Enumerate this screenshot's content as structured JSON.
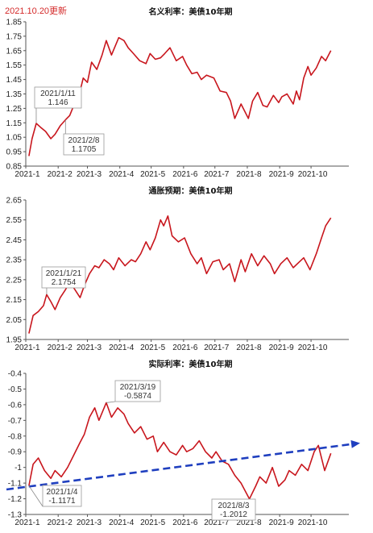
{
  "update_note": "2021.10.20更新",
  "chart_data": [
    {
      "type": "line",
      "title": "名义利率：美债10年期",
      "x_ticks": [
        "2021-1",
        "2021-2",
        "2021-3",
        "2021-4",
        "2021-5",
        "2021-6",
        "2021-7",
        "2021-8",
        "2021-9",
        "2021-10"
      ],
      "ylim": [
        0.85,
        1.85
      ],
      "y_ticks": [
        "0.85",
        "0.95",
        "1.05",
        "1.15",
        "1.25",
        "1.35",
        "1.45",
        "1.55",
        "1.65",
        "1.75",
        "1.85"
      ],
      "line_color": "#c8161d",
      "grid": false,
      "series": [
        {
          "x": [
            "2021-01-04",
            "2021-01-07",
            "2021-01-11",
            "2021-01-15",
            "2021-01-20",
            "2021-01-25",
            "2021-01-29",
            "2021-02-03",
            "2021-02-08",
            "2021-02-12",
            "2021-02-17",
            "2021-02-22",
            "2021-02-25",
            "2021-03-01",
            "2021-03-05",
            "2021-03-10",
            "2021-03-15",
            "2021-03-19",
            "2021-03-24",
            "2021-03-31",
            "2021-04-05",
            "2021-04-09",
            "2021-04-14",
            "2021-04-20",
            "2021-04-26",
            "2021-04-30",
            "2021-05-05",
            "2021-05-10",
            "2021-05-14",
            "2021-05-19",
            "2021-05-25",
            "2021-05-31",
            "2021-06-04",
            "2021-06-09",
            "2021-06-14",
            "2021-06-18",
            "2021-06-23",
            "2021-06-30",
            "2021-07-06",
            "2021-07-12",
            "2021-07-16",
            "2021-07-20",
            "2021-07-26",
            "2021-08-02",
            "2021-08-06",
            "2021-08-11",
            "2021-08-16",
            "2021-08-20",
            "2021-08-26",
            "2021-08-31",
            "2021-09-03",
            "2021-09-08",
            "2021-09-14",
            "2021-09-17",
            "2021-09-20",
            "2021-09-24",
            "2021-09-28",
            "2021-10-01",
            "2021-10-06",
            "2021-10-11",
            "2021-10-15",
            "2021-10-20"
          ],
          "values": [
            0.92,
            1.04,
            1.146,
            1.12,
            1.09,
            1.04,
            1.07,
            1.13,
            1.1705,
            1.2,
            1.29,
            1.37,
            1.46,
            1.43,
            1.57,
            1.52,
            1.62,
            1.72,
            1.62,
            1.74,
            1.72,
            1.67,
            1.63,
            1.58,
            1.56,
            1.63,
            1.59,
            1.6,
            1.63,
            1.67,
            1.58,
            1.61,
            1.55,
            1.49,
            1.5,
            1.45,
            1.48,
            1.46,
            1.37,
            1.36,
            1.3,
            1.18,
            1.28,
            1.18,
            1.3,
            1.36,
            1.27,
            1.26,
            1.34,
            1.29,
            1.33,
            1.35,
            1.28,
            1.37,
            1.31,
            1.46,
            1.54,
            1.48,
            1.53,
            1.61,
            1.58,
            1.65
          ]
        }
      ],
      "annotations": [
        {
          "lines": [
            "2021/1/11",
            "1.146"
          ],
          "x": "2021-01-11",
          "y": 1.146
        },
        {
          "lines": [
            "2021/2/8",
            "1.1705"
          ],
          "x": "2021-02-08",
          "y": 1.1705
        }
      ]
    },
    {
      "type": "line",
      "title": "通胀预期：美债10年期",
      "x_ticks": [
        "2021-1",
        "2021-2",
        "2021-3",
        "2021-4",
        "2021-5",
        "2021-6",
        "2021-7",
        "2021-8",
        "2021-9",
        "2021-10"
      ],
      "ylim": [
        1.95,
        2.65
      ],
      "y_ticks": [
        "1.95",
        "2.05",
        "2.15",
        "2.25",
        "2.35",
        "2.45",
        "2.55",
        "2.65"
      ],
      "line_color": "#c8161d",
      "grid": false,
      "series": [
        {
          "x": [
            "2021-01-04",
            "2021-01-08",
            "2021-01-13",
            "2021-01-18",
            "2021-01-21",
            "2021-01-25",
            "2021-01-29",
            "2021-02-03",
            "2021-02-08",
            "2021-02-12",
            "2021-02-17",
            "2021-02-22",
            "2021-02-26",
            "2021-03-03",
            "2021-03-08",
            "2021-03-12",
            "2021-03-17",
            "2021-03-22",
            "2021-03-26",
            "2021-03-31",
            "2021-04-06",
            "2021-04-12",
            "2021-04-16",
            "2021-04-21",
            "2021-04-26",
            "2021-04-30",
            "2021-05-05",
            "2021-05-10",
            "2021-05-13",
            "2021-05-17",
            "2021-05-21",
            "2021-05-27",
            "2021-06-02",
            "2021-06-08",
            "2021-06-14",
            "2021-06-18",
            "2021-06-23",
            "2021-06-29",
            "2021-07-05",
            "2021-07-09",
            "2021-07-15",
            "2021-07-20",
            "2021-07-26",
            "2021-07-30",
            "2021-08-05",
            "2021-08-11",
            "2021-08-17",
            "2021-08-23",
            "2021-08-27",
            "2021-09-02",
            "2021-09-08",
            "2021-09-14",
            "2021-09-20",
            "2021-09-24",
            "2021-09-30",
            "2021-10-06",
            "2021-10-11",
            "2021-10-15",
            "2021-10-20"
          ],
          "values": [
            1.98,
            2.07,
            2.09,
            2.12,
            2.1754,
            2.14,
            2.1,
            2.16,
            2.2,
            2.24,
            2.2,
            2.16,
            2.22,
            2.28,
            2.32,
            2.31,
            2.35,
            2.33,
            2.3,
            2.36,
            2.32,
            2.35,
            2.34,
            2.38,
            2.44,
            2.4,
            2.46,
            2.55,
            2.52,
            2.57,
            2.47,
            2.44,
            2.46,
            2.38,
            2.33,
            2.36,
            2.28,
            2.34,
            2.35,
            2.3,
            2.33,
            2.24,
            2.35,
            2.29,
            2.38,
            2.32,
            2.37,
            2.33,
            2.28,
            2.33,
            2.36,
            2.31,
            2.34,
            2.36,
            2.3,
            2.38,
            2.46,
            2.52,
            2.56
          ]
        }
      ],
      "annotations": [
        {
          "lines": [
            "2021/1/21",
            "2.1754"
          ],
          "x": "2021-01-21",
          "y": 2.1754
        }
      ]
    },
    {
      "type": "line",
      "title": "实际利率：美债10年期",
      "x_ticks": [
        "2021-1",
        "2021-2",
        "2021-3",
        "2021-4",
        "2021-5",
        "2021-6",
        "2021-7",
        "2021-8",
        "2021-9",
        "2021-10"
      ],
      "ylim": [
        -1.3,
        -0.4
      ],
      "y_ticks": [
        "-0.4",
        "-0.5",
        "-0.6",
        "-0.7",
        "-0.8",
        "-0.9",
        "-1",
        "-1.1",
        "-1.2",
        "-1.3"
      ],
      "line_color": "#c8161d",
      "grid": false,
      "series": [
        {
          "x": [
            "2021-01-04",
            "2021-01-08",
            "2021-01-13",
            "2021-01-19",
            "2021-01-25",
            "2021-01-29",
            "2021-02-04",
            "2021-02-10",
            "2021-02-16",
            "2021-02-22",
            "2021-02-26",
            "2021-03-03",
            "2021-03-08",
            "2021-03-12",
            "2021-03-19",
            "2021-03-24",
            "2021-03-30",
            "2021-04-05",
            "2021-04-09",
            "2021-04-15",
            "2021-04-21",
            "2021-04-27",
            "2021-05-03",
            "2021-05-07",
            "2021-05-13",
            "2021-05-19",
            "2021-05-25",
            "2021-05-31",
            "2021-06-04",
            "2021-06-10",
            "2021-06-16",
            "2021-06-22",
            "2021-06-28",
            "2021-07-02",
            "2021-07-08",
            "2021-07-14",
            "2021-07-20",
            "2021-07-26",
            "2021-08-03",
            "2021-08-09",
            "2021-08-13",
            "2021-08-19",
            "2021-08-25",
            "2021-08-31",
            "2021-09-06",
            "2021-09-10",
            "2021-09-16",
            "2021-09-22",
            "2021-09-28",
            "2021-10-04",
            "2021-10-08",
            "2021-10-14",
            "2021-10-20"
          ],
          "values": [
            -1.1171,
            -0.98,
            -0.94,
            -1.02,
            -1.07,
            -1.02,
            -1.06,
            -1.0,
            -0.92,
            -0.84,
            -0.79,
            -0.68,
            -0.62,
            -0.7,
            -0.5874,
            -0.68,
            -0.62,
            -0.66,
            -0.72,
            -0.78,
            -0.74,
            -0.82,
            -0.8,
            -0.9,
            -0.84,
            -0.9,
            -0.92,
            -0.86,
            -0.9,
            -0.88,
            -0.83,
            -0.9,
            -0.94,
            -0.9,
            -0.96,
            -0.98,
            -1.05,
            -1.1,
            -1.2012,
            -1.12,
            -1.06,
            -1.1,
            -1.0,
            -1.12,
            -1.08,
            -1.02,
            -1.05,
            -0.98,
            -1.02,
            -0.9,
            -0.86,
            -1.02,
            -0.91
          ]
        }
      ],
      "trend": {
        "color": "#1f3fbf",
        "start": [
          "2021-01-01",
          -1.12
        ],
        "end": [
          "2021-10-31",
          -0.86
        ]
      },
      "annotations": [
        {
          "lines": [
            "2021/3/19",
            "-0.5874"
          ],
          "x": "2021-03-19",
          "y": -0.5874
        },
        {
          "lines": [
            "2021/1/4",
            "-1.1171"
          ],
          "x": "2021-01-04",
          "y": -1.1171
        },
        {
          "lines": [
            "2021/8/3",
            "-1.2012"
          ],
          "x": "2021-08-03",
          "y": -1.2012
        }
      ]
    }
  ]
}
